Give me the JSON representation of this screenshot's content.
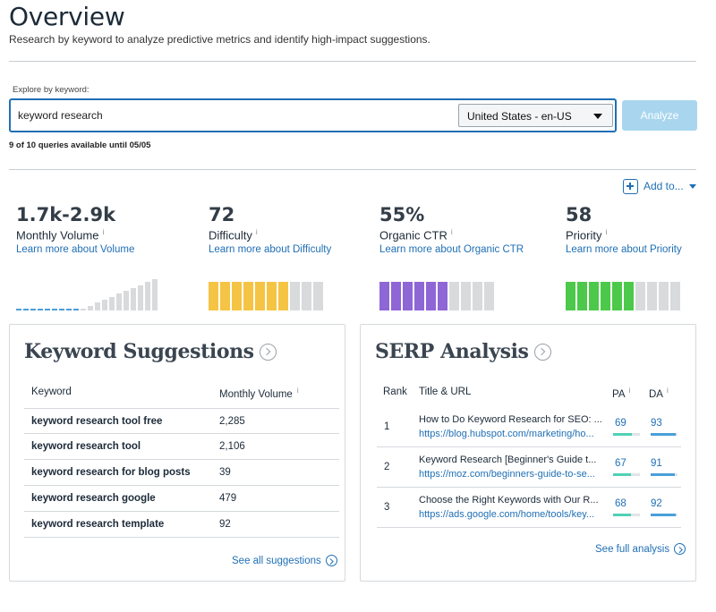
{
  "page": {
    "title": "Overview",
    "subtitle": "Research by keyword to analyze predictive metrics and identify high-impact suggestions."
  },
  "search": {
    "label": "Explore by keyword:",
    "value": "keyword research",
    "locale": "United States - en-US",
    "analyze_label": "Analyze",
    "queries_status": "9 of 10 queries available until 05/05"
  },
  "add_to": {
    "label": "Add to..."
  },
  "metrics": {
    "volume": {
      "value": "1.7k-2.9k",
      "label": "Monthly Volume",
      "info": "i",
      "link": "Learn more about Volume",
      "bar_color": "#4a9fd8",
      "level": 0.45
    },
    "difficulty": {
      "value": "72",
      "label": "Difficulty",
      "info": "i",
      "link": "Learn more about Difficulty",
      "bar_color": "#f5c444",
      "level": 0.72
    },
    "ctr": {
      "value": "55%",
      "label": "Organic CTR",
      "info": "i",
      "link": "Learn more about Organic CTR",
      "bar_color": "#8e66d6",
      "level": 0.55
    },
    "priority": {
      "value": "58",
      "label": "Priority",
      "info": "i",
      "link": "Learn more about Priority",
      "bar_color": "#4cc94a",
      "level": 0.58
    }
  },
  "suggestions": {
    "title": "Keyword Suggestions",
    "col_keyword": "Keyword",
    "col_volume": "Monthly Volume",
    "info": "i",
    "rows": [
      {
        "keyword": "keyword research tool free",
        "volume": "2,285"
      },
      {
        "keyword": "keyword research tool",
        "volume": "2,106"
      },
      {
        "keyword": "keyword research for blog posts",
        "volume": "39"
      },
      {
        "keyword": "keyword research google",
        "volume": "479"
      },
      {
        "keyword": "keyword research template",
        "volume": "92"
      }
    ],
    "see_all": "See all suggestions"
  },
  "serp": {
    "title": "SERP Analysis",
    "col_rank": "Rank",
    "col_title": "Title & URL",
    "col_pa": "PA",
    "col_da": "DA",
    "info": "i",
    "pa_color": "#4fd1b5",
    "da_color": "#4a9fd8",
    "rows": [
      {
        "rank": "1",
        "title": "How to Do Keyword Research for SEO: ...",
        "url": "https://blog.hubspot.com/marketing/ho...",
        "pa": "69",
        "da": "93"
      },
      {
        "rank": "2",
        "title": "Keyword Research [Beginner's Guide t...",
        "url": "https://moz.com/beginners-guide-to-se...",
        "pa": "67",
        "da": "91"
      },
      {
        "rank": "3",
        "title": "Choose the Right Keywords with Our R...",
        "url": "https://ads.google.com/home/tools/key...",
        "pa": "68",
        "da": "92"
      }
    ],
    "see_full": "See full analysis"
  }
}
